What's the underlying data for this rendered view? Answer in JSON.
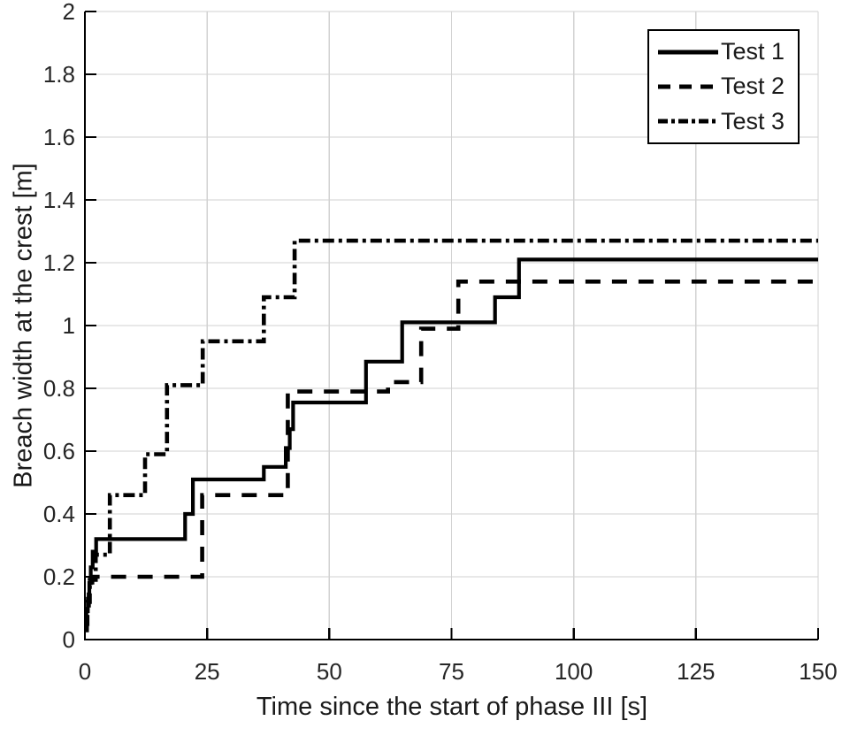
{
  "chart_data": {
    "type": "line",
    "subtype": "step-after",
    "title": "",
    "xlabel": "Time since the start of phase III [s]",
    "ylabel": "Breach width at the crest [m]",
    "xlim": [
      0,
      150
    ],
    "ylim": [
      0,
      2
    ],
    "xticks": {
      "values": [
        0,
        25,
        50,
        75,
        100,
        125,
        150
      ],
      "labels": [
        "0",
        "25",
        "50",
        "75",
        "100",
        "125",
        "150"
      ]
    },
    "yticks": {
      "values": [
        0,
        0.2,
        0.4,
        0.6,
        0.8,
        1,
        1.2,
        1.4,
        1.6,
        1.8,
        2
      ],
      "labels": [
        "0",
        "0.2",
        "0.4",
        "0.6",
        "0.8",
        "1",
        "1.2",
        "1.4",
        "1.6",
        "1.8",
        "2"
      ]
    },
    "grid": true,
    "legend": {
      "position": "top-right"
    },
    "colors": {
      "line": "#000000",
      "grid": "#d2d2d2",
      "axis": "#000000",
      "text": "#262626",
      "background": "#ffffff"
    },
    "series": [
      {
        "name": "Test 1",
        "line_style": "solid",
        "color": "#000000",
        "points": [
          [
            0,
            0.04
          ],
          [
            0.3,
            0.09
          ],
          [
            0.6,
            0.13
          ],
          [
            0.9,
            0.18
          ],
          [
            1.2,
            0.23
          ],
          [
            1.6,
            0.28
          ],
          [
            2.3,
            0.32
          ],
          [
            20.5,
            0.4
          ],
          [
            22.1,
            0.51
          ],
          [
            36.6,
            0.55
          ],
          [
            41.1,
            0.61
          ],
          [
            41.9,
            0.67
          ],
          [
            42.6,
            0.755
          ],
          [
            57.5,
            0.885
          ],
          [
            64.9,
            1.01
          ],
          [
            83.9,
            1.09
          ],
          [
            88.8,
            1.21
          ],
          [
            150,
            1.21
          ]
        ]
      },
      {
        "name": "Test 2",
        "line_style": "dashed",
        "color": "#000000",
        "points": [
          [
            0,
            0.03
          ],
          [
            0.4,
            0.1
          ],
          [
            0.8,
            0.15
          ],
          [
            1.5,
            0.2
          ],
          [
            24.0,
            0.46
          ],
          [
            41.5,
            0.79
          ],
          [
            62.0,
            0.82
          ],
          [
            68.8,
            0.99
          ],
          [
            76.4,
            1.14
          ],
          [
            150,
            1.14
          ]
        ]
      },
      {
        "name": "Test 3",
        "line_style": "dashdot",
        "color": "#000000",
        "points": [
          [
            0,
            0.05
          ],
          [
            0.5,
            0.12
          ],
          [
            1.0,
            0.19
          ],
          [
            2.2,
            0.27
          ],
          [
            5.1,
            0.46
          ],
          [
            12.3,
            0.59
          ],
          [
            16.8,
            0.81
          ],
          [
            24.1,
            0.95
          ],
          [
            36.6,
            1.09
          ],
          [
            42.9,
            1.27
          ],
          [
            150,
            1.27
          ]
        ]
      }
    ]
  }
}
